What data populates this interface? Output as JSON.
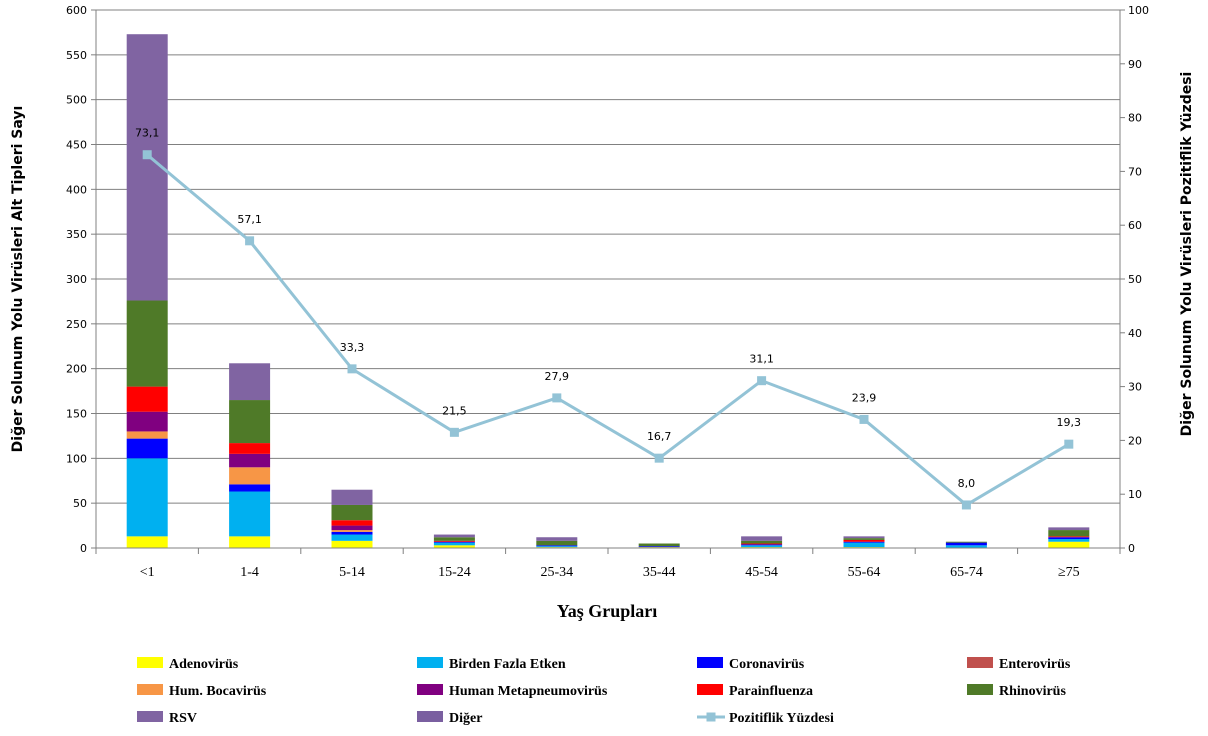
{
  "chart_data": {
    "type": "bar",
    "subtype": "stacked bar with secondary-axis line",
    "categories": [
      "<1",
      "1-4",
      "5-14",
      "15-24",
      "25-34",
      "35-44",
      "45-54",
      "55-64",
      "65-74",
      "≥75"
    ],
    "xlabel": "Yaş Grupları",
    "ylabel": "Diğer Solunum Yolu Virüsleri  Alt Tipleri Sayı",
    "y2label": "Diğer Solunum Yolu Virüsleri  Pozitiflik Yüzdesi",
    "ylim": [
      0,
      600
    ],
    "yticks": [
      0,
      50,
      100,
      150,
      200,
      250,
      300,
      350,
      400,
      450,
      500,
      550,
      600
    ],
    "y2lim": [
      0,
      100
    ],
    "y2ticks": [
      0,
      10,
      20,
      30,
      40,
      50,
      60,
      70,
      80,
      90,
      100
    ],
    "grid": true,
    "legend_position": "bottom",
    "series": [
      {
        "name": "Adenovirüs",
        "color": "#ffff00",
        "values": [
          13,
          13,
          8,
          3,
          1,
          1,
          1,
          1,
          0,
          7
        ]
      },
      {
        "name": "Birden Fazla Etken",
        "color": "#00b0f0",
        "values": [
          87,
          50,
          7,
          3,
          1,
          0,
          2,
          5,
          3,
          3
        ]
      },
      {
        "name": "Coronavirüs",
        "color": "#0000ff",
        "values": [
          22,
          8,
          3,
          1,
          1,
          1,
          1,
          1,
          3,
          2
        ]
      },
      {
        "name": "Enterovirüs",
        "color": "#c0504d",
        "values": [
          0,
          0,
          0,
          0,
          0,
          0,
          0,
          0,
          0,
          0
        ]
      },
      {
        "name": "Hum. Bocavirüs",
        "color": "#f79646",
        "values": [
          8,
          19,
          2,
          0,
          0,
          0,
          0,
          0,
          0,
          0
        ]
      },
      {
        "name": "Human Metapneumovirüs",
        "color": "#800080",
        "values": [
          22,
          15,
          5,
          0,
          0,
          0,
          0,
          0,
          0,
          0
        ]
      },
      {
        "name": "Parainfluenza",
        "color": "#ff0000",
        "values": [
          28,
          12,
          6,
          1,
          0,
          0,
          1,
          2,
          0,
          1
        ]
      },
      {
        "name": "Rhinovirüs",
        "color": "#4f7a28",
        "values": [
          96,
          48,
          17,
          4,
          5,
          3,
          3,
          2,
          1,
          7
        ]
      },
      {
        "name": "RSV",
        "color": "#8064a2",
        "values": [
          297,
          41,
          17,
          3,
          4,
          0,
          5,
          2,
          0,
          3
        ]
      },
      {
        "name": "Diğer",
        "color": "#7a5fa0",
        "values": [
          0,
          0,
          0,
          0,
          0,
          0,
          0,
          0,
          0,
          0
        ]
      }
    ],
    "line_series": {
      "name": "Pozitiflik Yüzdesi",
      "color": "#93c3d6",
      "axis": "right",
      "values": [
        73.1,
        57.1,
        33.3,
        21.5,
        27.9,
        16.7,
        31.1,
        23.9,
        8.0,
        19.3
      ],
      "labels": [
        "73,1",
        "57,1",
        "33,3",
        "21,5",
        "27,9",
        "16,7",
        "31,1",
        "23,9",
        "8,0",
        "19,3"
      ]
    }
  }
}
